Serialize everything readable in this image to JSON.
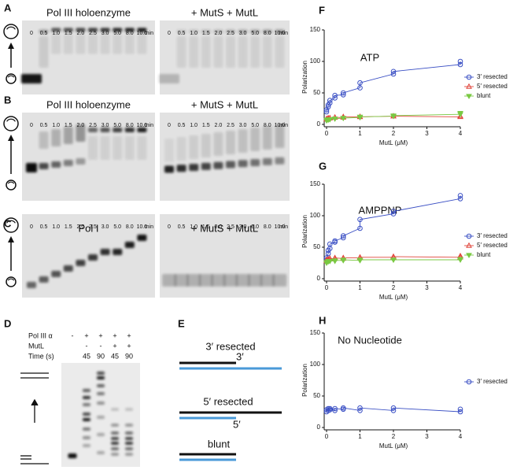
{
  "panels": [
    {
      "letter": "A",
      "left_title": "Pol III holoenzyme",
      "right_title": "+ MutS + MutL",
      "lanes": [
        "0",
        "0.5",
        "1.0",
        "1.5",
        "2.0",
        "2.5",
        "3.0",
        "5.0",
        "8.0",
        "10.0"
      ],
      "unit": "min"
    },
    {
      "letter": "B",
      "left_title": "Pol III holoenzyme",
      "right_title": "+ MutS + MutL",
      "lanes": [
        "0",
        "0.5",
        "1.0",
        "1.5",
        "2.0",
        "2.5",
        "3.0",
        "5.0",
        "8.0",
        "10.0"
      ],
      "unit": "min"
    },
    {
      "letter": "C",
      "left_title": "Pol I",
      "right_title": "+ MutS + MutL",
      "lanes": [
        "0",
        "0.5",
        "1.0",
        "1.5",
        "2.0",
        "2.5",
        "3.0",
        "5.0",
        "8.0",
        "10.0"
      ],
      "unit": "min"
    }
  ],
  "gel_d": {
    "letter": "D",
    "rows": [
      {
        "label": "Pol III α",
        "marks": [
          "-",
          "+",
          "+",
          "+",
          "+"
        ]
      },
      {
        "label": "MutL",
        "marks": [
          "-",
          "-",
          "+",
          "+"
        ]
      },
      {
        "label": "Time (s)",
        "marks": [
          "45",
          "90",
          "45",
          "90"
        ]
      }
    ]
  },
  "diagram_e": {
    "letter": "E",
    "substrates": [
      {
        "label": "3′ resected",
        "end": "3′"
      },
      {
        "label": "5′ resected",
        "end": "5′"
      },
      {
        "label": "blunt"
      }
    ]
  },
  "chart_data": [
    {
      "type": "scatter",
      "letter": "F",
      "title": "ATP",
      "x_label": "MutL (μM)",
      "y_label": "Polarization",
      "x": [
        0,
        0,
        0.05,
        0.05,
        0.1,
        0.1,
        0.25,
        0.25,
        0.5,
        0.5,
        1,
        1,
        2,
        2,
        4,
        4
      ],
      "xlim": [
        0,
        4
      ],
      "xticks": [
        0,
        1,
        2,
        3,
        4
      ],
      "ylim": [
        0,
        150
      ],
      "yticks": [
        0,
        50,
        100,
        150
      ],
      "legend": "right",
      "series": [
        {
          "name": "3′ resected",
          "color": "#3a4fc4",
          "marker": "circle",
          "values": [
            20,
            23,
            28,
            31,
            34,
            38,
            42,
            46,
            47,
            50,
            58,
            66,
            80,
            84,
            95,
            100
          ]
        },
        {
          "name": "5′ resected",
          "color": "#e0443a",
          "marker": "triangle",
          "values": [
            8,
            9,
            9,
            10,
            10,
            10,
            11,
            11,
            11,
            12,
            12,
            12,
            13,
            13,
            12,
            13
          ]
        },
        {
          "name": "blunt",
          "color": "#7ac943",
          "marker": "triangle-down",
          "values": [
            6,
            7,
            7,
            8,
            8,
            8,
            9,
            9,
            10,
            10,
            11,
            12,
            13,
            14,
            16,
            18
          ]
        }
      ]
    },
    {
      "type": "scatter",
      "letter": "G",
      "title": "AMPPNP",
      "x_label": "MutL (μM)",
      "y_label": "Polarization",
      "x": [
        0,
        0,
        0.05,
        0.05,
        0.1,
        0.1,
        0.25,
        0.25,
        0.5,
        0.5,
        1,
        1,
        2,
        2,
        4,
        4
      ],
      "xlim": [
        0,
        4
      ],
      "xticks": [
        0,
        1,
        2,
        3,
        4
      ],
      "ylim": [
        0,
        150
      ],
      "yticks": [
        0,
        50,
        100,
        150
      ],
      "legend": "right",
      "series": [
        {
          "name": "3′ resected",
          "color": "#3a4fc4",
          "marker": "circle",
          "values": [
            30,
            33,
            40,
            45,
            48,
            55,
            58,
            60,
            65,
            68,
            80,
            94,
            103,
            107,
            127,
            132
          ]
        },
        {
          "name": "5′ resected",
          "color": "#e0443a",
          "marker": "triangle",
          "values": [
            28,
            30,
            30,
            31,
            31,
            32,
            32,
            33,
            32,
            33,
            33,
            34,
            34,
            35,
            34,
            36
          ]
        },
        {
          "name": "blunt",
          "color": "#7ac943",
          "marker": "triangle-down",
          "values": [
            25,
            26,
            27,
            28,
            28,
            28,
            28,
            29,
            29,
            30,
            29,
            30,
            30,
            30,
            30,
            31
          ]
        }
      ]
    },
    {
      "type": "scatter",
      "letter": "H",
      "title": "No Nucleotide",
      "x_label": "MutL (μM)",
      "y_label": "Polarization",
      "x": [
        0,
        0,
        0.05,
        0.05,
        0.1,
        0.1,
        0.25,
        0.25,
        0.5,
        0.5,
        1,
        1,
        2,
        2,
        4,
        4
      ],
      "xlim": [
        0,
        4
      ],
      "xticks": [
        0,
        1,
        2,
        3,
        4
      ],
      "ylim": [
        0,
        150
      ],
      "yticks": [
        0,
        50,
        100,
        150
      ],
      "legend": "right",
      "series": [
        {
          "name": "3′ resected",
          "color": "#3a4fc4",
          "marker": "circle",
          "values": [
            25,
            28,
            27,
            30,
            28,
            30,
            27,
            30,
            29,
            31,
            27,
            31,
            27,
            31,
            25,
            29
          ]
        }
      ]
    }
  ]
}
